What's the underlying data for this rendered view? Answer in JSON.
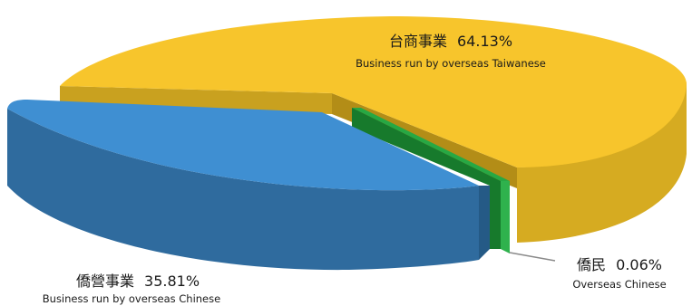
{
  "chart_data": {
    "type": "pie",
    "style": "3d-exploded",
    "categories": [
      "台商事業",
      "僑營事業",
      "僑民"
    ],
    "values": [
      64.13,
      35.81,
      0.06
    ],
    "value_labels": [
      "64.13%",
      "35.81%",
      "0.06%"
    ],
    "subtitles": [
      "Business run by overseas Taiwanese",
      "Business run by overseas Chinese",
      "Overseas Chinese"
    ],
    "colors": [
      "#f7c52c",
      "#3f8fd2",
      "#1f9a3a"
    ],
    "title": "",
    "legend": "none"
  }
}
